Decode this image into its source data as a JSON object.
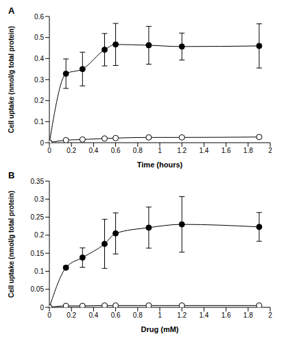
{
  "chart_data": [
    {
      "type": "line",
      "title": "A",
      "x_label": "Time (hours)",
      "y_label": "Cell uptake (nmol/g total protein)",
      "x": [
        0,
        0.15,
        0.3,
        0.5,
        0.6,
        0.9,
        1.2,
        1.9
      ],
      "xlim": [
        0,
        2
      ],
      "xticks": [
        0,
        0.2,
        0.4,
        0.6,
        0.8,
        1,
        1.2,
        1.4,
        1.6,
        1.8,
        2
      ],
      "ylim": [
        0,
        0.6
      ],
      "yticks": [
        0,
        0.1,
        0.2,
        0.3,
        0.4,
        0.5,
        0.6
      ],
      "series": [
        {
          "color": "#000000",
          "marker": "filled",
          "line_style": "solid",
          "values": [
            0,
            0.328,
            0.35,
            0.442,
            0.467,
            0.463,
            0.457,
            0.46
          ],
          "errors": [
            0,
            0.07,
            0.08,
            0.077,
            0.1,
            0.09,
            0.064,
            0.105
          ]
        },
        {
          "color": "#000000",
          "marker": "open",
          "line_style": "solid",
          "values": [
            0,
            0.012,
            0.015,
            0.02,
            0.022,
            0.025,
            0.025,
            0.027
          ],
          "errors": [
            0,
            0.002,
            0.002,
            0.003,
            0.004,
            0.006,
            0.005,
            0.006
          ]
        }
      ]
    },
    {
      "type": "line",
      "title": "B",
      "x_label": "Drug (mM)",
      "y_label": "Cell uptake (nmol/g total protein)",
      "x": [
        0,
        0.15,
        0.3,
        0.5,
        0.6,
        0.9,
        1.2,
        1.9
      ],
      "xlim": [
        0,
        2
      ],
      "xticks": [
        0,
        0.2,
        0.4,
        0.6,
        0.8,
        1,
        1.2,
        1.4,
        1.6,
        1.8,
        2
      ],
      "ylim": [
        0,
        0.35
      ],
      "yticks": [
        0,
        0.05,
        0.1,
        0.15,
        0.2,
        0.25,
        0.3,
        0.35
      ],
      "series": [
        {
          "color": "#000000",
          "marker": "filled",
          "line_style": "solid",
          "values": [
            0,
            0.11,
            0.138,
            0.176,
            0.205,
            0.221,
            0.23,
            0.223
          ],
          "errors": [
            0,
            0.004,
            0.027,
            0.068,
            0.057,
            0.057,
            0.077,
            0.04
          ]
        },
        {
          "color": "#000000",
          "marker": "open",
          "line_style": "solid",
          "values": [
            0,
            0.004,
            0.004,
            0.005,
            0.005,
            0.005,
            0.005,
            0.005
          ],
          "errors": [
            0,
            0.002,
            0.002,
            0.002,
            0.002,
            0.002,
            0.002,
            0.002
          ]
        }
      ]
    }
  ]
}
